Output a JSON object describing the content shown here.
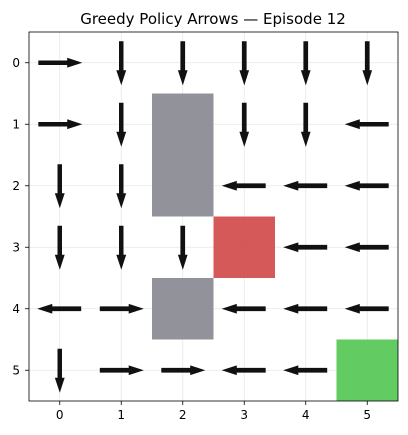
{
  "chart_data": {
    "type": "quiver",
    "title": "Greedy Policy Arrows — Episode 12",
    "xlabel": "",
    "ylabel": "",
    "xlim": [
      -0.5,
      5.5
    ],
    "ylim": [
      5.5,
      -0.5
    ],
    "y_inverted": true,
    "grid": true,
    "x_ticks": [
      "0",
      "1",
      "2",
      "3",
      "4",
      "5"
    ],
    "y_ticks": [
      "0",
      "1",
      "2",
      "3",
      "4",
      "5"
    ],
    "colors": {
      "wall": "#8c8c96",
      "hazard": "#d35050",
      "goal": "#5ac85a",
      "arrow": "#111111"
    },
    "regions": [
      {
        "kind": "wall",
        "x0": 1.5,
        "x1": 2.5,
        "y0": 0.5,
        "y1": 2.5
      },
      {
        "kind": "wall",
        "x0": 1.5,
        "x1": 2.5,
        "y0": 3.5,
        "y1": 4.5
      },
      {
        "kind": "hazard",
        "x0": 2.5,
        "x1": 3.5,
        "y0": 2.5,
        "y1": 3.5
      },
      {
        "kind": "goal",
        "x0": 4.5,
        "x1": 5.5,
        "y0": 4.5,
        "y1": 5.5
      }
    ],
    "arrows": [
      {
        "row": 0,
        "col": 0,
        "action": "right"
      },
      {
        "row": 0,
        "col": 1,
        "action": "down"
      },
      {
        "row": 0,
        "col": 2,
        "action": "down"
      },
      {
        "row": 0,
        "col": 3,
        "action": "down"
      },
      {
        "row": 0,
        "col": 4,
        "action": "down"
      },
      {
        "row": 0,
        "col": 5,
        "action": "down"
      },
      {
        "row": 1,
        "col": 0,
        "action": "right"
      },
      {
        "row": 1,
        "col": 1,
        "action": "down"
      },
      {
        "row": 1,
        "col": 3,
        "action": "down"
      },
      {
        "row": 1,
        "col": 4,
        "action": "down"
      },
      {
        "row": 1,
        "col": 5,
        "action": "left"
      },
      {
        "row": 2,
        "col": 0,
        "action": "down"
      },
      {
        "row": 2,
        "col": 1,
        "action": "down"
      },
      {
        "row": 2,
        "col": 3,
        "action": "left"
      },
      {
        "row": 2,
        "col": 4,
        "action": "left"
      },
      {
        "row": 2,
        "col": 5,
        "action": "left"
      },
      {
        "row": 3,
        "col": 0,
        "action": "down"
      },
      {
        "row": 3,
        "col": 1,
        "action": "down"
      },
      {
        "row": 3,
        "col": 2,
        "action": "down"
      },
      {
        "row": 3,
        "col": 4,
        "action": "left"
      },
      {
        "row": 3,
        "col": 5,
        "action": "left"
      },
      {
        "row": 4,
        "col": 0,
        "action": "left"
      },
      {
        "row": 4,
        "col": 1,
        "action": "right"
      },
      {
        "row": 4,
        "col": 3,
        "action": "left"
      },
      {
        "row": 4,
        "col": 4,
        "action": "left"
      },
      {
        "row": 4,
        "col": 5,
        "action": "left"
      },
      {
        "row": 5,
        "col": 0,
        "action": "down"
      },
      {
        "row": 5,
        "col": 1,
        "action": "right"
      },
      {
        "row": 5,
        "col": 2,
        "action": "right"
      },
      {
        "row": 5,
        "col": 3,
        "action": "left"
      },
      {
        "row": 5,
        "col": 4,
        "action": "left"
      }
    ]
  }
}
